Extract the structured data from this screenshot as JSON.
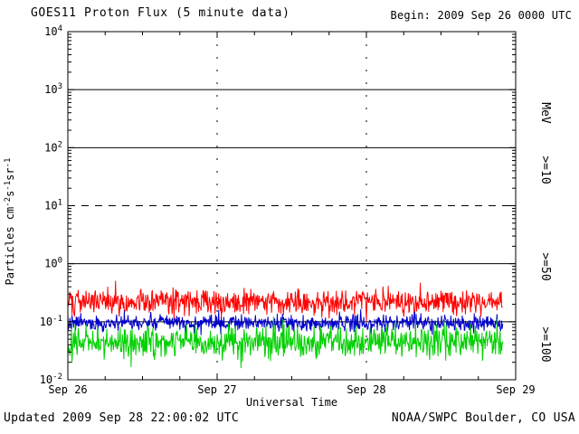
{
  "header": {
    "title": "GOES11 Proton Flux (5 minute data)",
    "begin": "Begin: 2009 Sep 26 0000 UTC"
  },
  "footer": {
    "updated": "Updated 2009 Sep 28 22:00:02 UTC",
    "source": "NOAA/SWPC Boulder, CO USA"
  },
  "chart_data": {
    "type": "line",
    "title": "GOES11 Proton Flux (5 minute data)",
    "xlabel": "Universal Time",
    "ylabel_segments": [
      {
        "t": "Particles cm"
      },
      {
        "t": "-2",
        "sup": true
      },
      {
        "t": "s"
      },
      {
        "t": "-1",
        "sup": true
      },
      {
        "t": "sr"
      },
      {
        "t": "-1",
        "sup": true
      }
    ],
    "x_axis": {
      "tick_labels": [
        "Sep 26",
        "Sep 27",
        "Sep 28",
        "Sep 29"
      ],
      "days_total": 3,
      "minor_tick_hours": 6,
      "begin_utc": "2009 Sep 26 0000 UTC"
    },
    "y_axis": {
      "scale": "log10",
      "min_exp": -2,
      "max_exp": 4,
      "tick_exponents": [
        -2,
        -1,
        0,
        1,
        2,
        3,
        4
      ],
      "dashed_threshold_exp": 1
    },
    "right_axis_labels": [
      {
        "text": "MeV",
        "color": "#000000",
        "y_center": 125
      },
      {
        "text": ">=10",
        "color": "#ff0000",
        "y_center": 188
      },
      {
        "text": ">=50",
        "color": "#0000cc",
        "y_center": 295
      },
      {
        "text": ">=100",
        "color": "#00d000",
        "y_center": 381
      }
    ],
    "series": [
      {
        "name": ">=10 MeV",
        "id": "ge10",
        "color": "#ff0000",
        "approx_mean_flux": 0.22,
        "log10_mean": -0.65,
        "log10_sigma": 0.11,
        "seed": 101
      },
      {
        "name": ">=50 MeV",
        "id": "ge50",
        "color": "#0000cc",
        "approx_mean_flux": 0.095,
        "log10_mean": -1.02,
        "log10_sigma": 0.07,
        "seed": 202
      },
      {
        "name": ">=100 MeV",
        "id": "ge100",
        "color": "#00d000",
        "approx_mean_flux": 0.045,
        "log10_mean": -1.35,
        "log10_sigma": 0.13,
        "seed": 303
      }
    ],
    "samples_per_day": 288,
    "days_plotted": 2.9167,
    "legend_position": "right-rotated",
    "grid": "horizontal decade lines, dashed line at 10^1, dotted vertical day lines"
  }
}
